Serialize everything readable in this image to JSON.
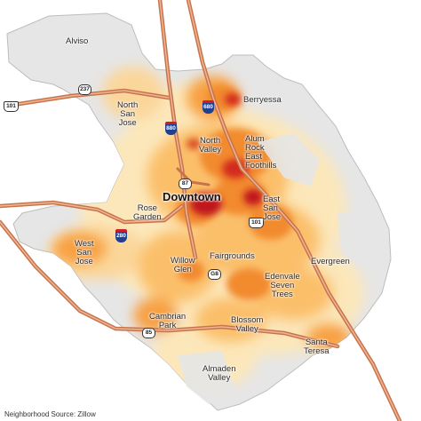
{
  "map": {
    "neighborhoods": {
      "alviso": "Alviso",
      "berryessa": "Berryessa",
      "north_san_jose": "North\nSan\nJose",
      "north_valley": "North\nValley",
      "alum_rock_east_foothills": "Alum\nRock\nEast\nFoothills",
      "downtown": "Downtown",
      "rose_garden": "Rose\nGarden",
      "east_san_jose": "East\nSan\nJose",
      "west_san_jose": "West\nSan\nJose",
      "willow_glen": "Willow\nGlen",
      "fairgrounds": "Fairgrounds",
      "evergreen": "Evergreen",
      "edenvale_seven_trees": "Edenvale\nSeven\nTrees",
      "cambrian_park": "Cambrian\nPark",
      "blossom_valley": "Blossom\nValley",
      "santa_teresa": "Santa\nTeresa",
      "almaden_valley": "Almaden\nValley"
    },
    "shields": {
      "ca_237": "237",
      "us_101_north": "101",
      "i_880": "880",
      "i_680": "680",
      "ca_87": "87",
      "us_101_south": "101",
      "i_280": "280",
      "g8": "G8",
      "ca_85": "85"
    },
    "source_note": "Neighborhood Source: Zillow",
    "colors": {
      "land": "#e6e6e6",
      "border": "#bdbdbd",
      "highway": "#c8744a",
      "highway_inner": "#f0b597",
      "heat_low": "#fde7b8",
      "heat_mid": "#f8a043",
      "heat_high": "#c0141c"
    }
  }
}
